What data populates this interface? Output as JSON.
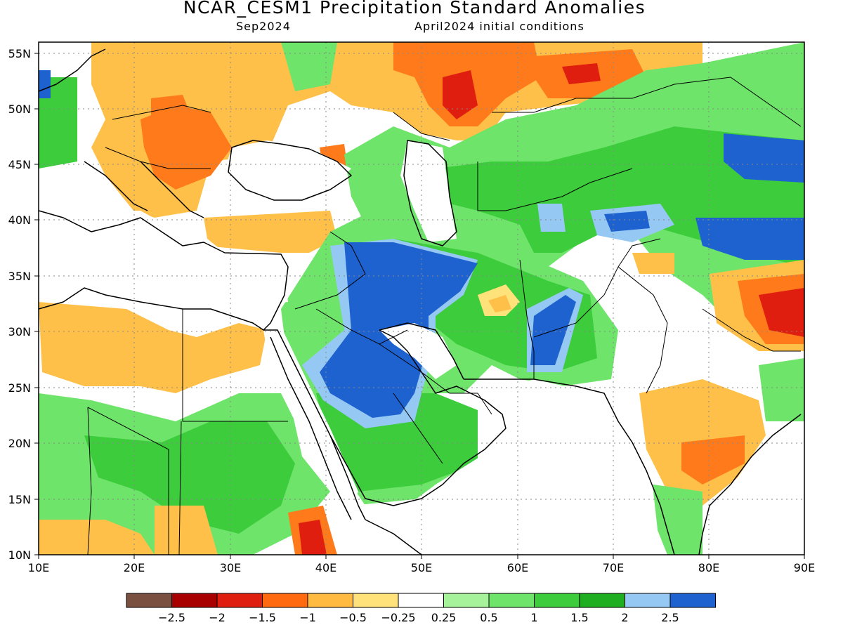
{
  "title": "NCAR_CESM1 Precipitation Standard Anomalies",
  "valid_month": "Sep2024",
  "init_conditions": "April2024 initial conditions",
  "map": {
    "lon_range": [
      10,
      90
    ],
    "lat_range": [
      10,
      56
    ],
    "lon_ticks": [
      "10E",
      "20E",
      "30E",
      "40E",
      "50E",
      "60E",
      "70E",
      "80E",
      "90E"
    ],
    "lat_ticks": [
      "10N",
      "15N",
      "20N",
      "25N",
      "30N",
      "35N",
      "40N",
      "45N",
      "50N",
      "55N"
    ],
    "grid": "dotted",
    "colors": {
      "ocean": "#ffffff",
      "neutral": "#ffffff",
      "dry_1": "#ffe27a",
      "dry_2": "#ffc04a",
      "dry_3": "#ff7a1a",
      "dry_4": "#e01e10",
      "wet_1": "#a6f29a",
      "wet_2": "#6ee46a",
      "wet_3": "#3ccc3c",
      "wet_4": "#1fae1f",
      "wet_5": "#96c8f4",
      "wet_6": "#1e62d0"
    }
  },
  "colorbar": {
    "colors": [
      "#7a5040",
      "#a80000",
      "#e01e10",
      "#ff6a10",
      "#ffba42",
      "#ffe27a",
      "#ffffff",
      "#a6f29a",
      "#6ee46a",
      "#3ccc3c",
      "#1fae1f",
      "#96c8f4",
      "#1e62d0"
    ],
    "labels": [
      "−2.5",
      "−2",
      "−1.5",
      "−1",
      "−0.5",
      "−0.25",
      "0.25",
      "0.5",
      "1",
      "1.5",
      "2",
      "2.5"
    ]
  }
}
